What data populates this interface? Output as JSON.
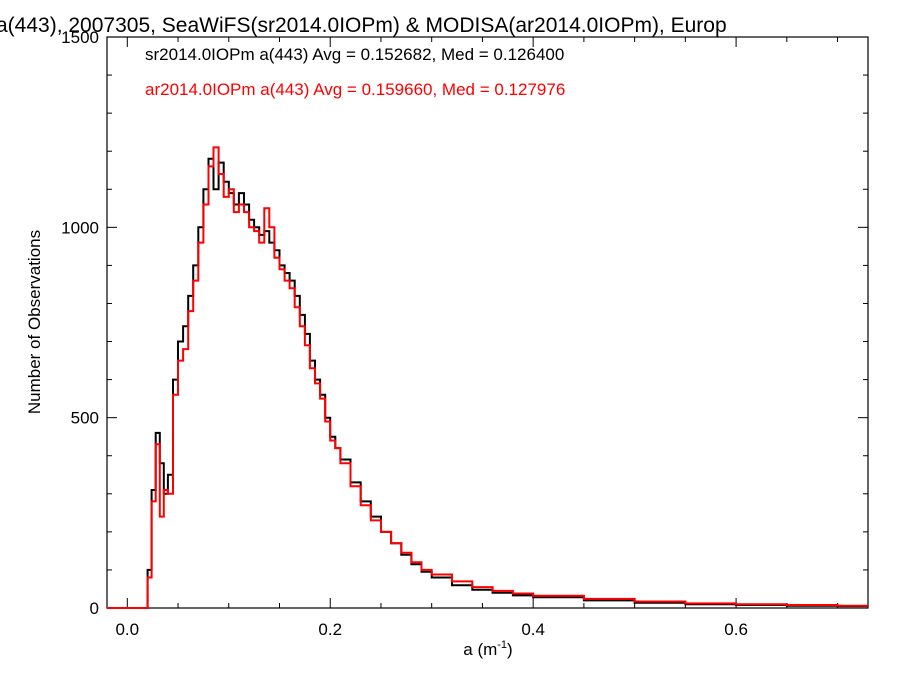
{
  "chart_data": {
    "type": "line",
    "title": "a(443), 2007305, SeaWiFS(sr2014.0IOPm) & MODISA(ar2014.0IOPm), Europ",
    "xlabel_base": "a (m",
    "xlabel_sup": "-1",
    "xlabel_close": ")",
    "ylabel": "Number of Observations",
    "xlim": [
      -0.02,
      0.73
    ],
    "ylim": [
      0,
      1500
    ],
    "xticks": [
      0.0,
      0.2,
      0.4,
      0.6
    ],
    "xtick_labels": [
      "0.0",
      "0.2",
      "0.4",
      "0.6"
    ],
    "yticks": [
      0,
      500,
      1000,
      1500
    ],
    "ytick_labels": [
      "0",
      "500",
      "1000",
      "1500"
    ],
    "legend_placement": "top-left",
    "grid": false,
    "series": [
      {
        "legend": "sr2014.0IOPm a(443) Avg = 0.152682, Med = 0.126400",
        "color": "#000000",
        "points": [
          [
            -0.02,
            0
          ],
          [
            0.016,
            0
          ],
          [
            0.02,
            100
          ],
          [
            0.024,
            310
          ],
          [
            0.028,
            460
          ],
          [
            0.032,
            380
          ],
          [
            0.036,
            300
          ],
          [
            0.04,
            350
          ],
          [
            0.045,
            600
          ],
          [
            0.05,
            700
          ],
          [
            0.055,
            740
          ],
          [
            0.06,
            820
          ],
          [
            0.065,
            900
          ],
          [
            0.07,
            1000
          ],
          [
            0.075,
            1100
          ],
          [
            0.08,
            1180
          ],
          [
            0.085,
            1100
          ],
          [
            0.09,
            1170
          ],
          [
            0.095,
            1120
          ],
          [
            0.1,
            1090
          ],
          [
            0.105,
            1060
          ],
          [
            0.11,
            1090
          ],
          [
            0.115,
            1060
          ],
          [
            0.12,
            1020
          ],
          [
            0.125,
            1000
          ],
          [
            0.13,
            980
          ],
          [
            0.135,
            990
          ],
          [
            0.14,
            960
          ],
          [
            0.145,
            940
          ],
          [
            0.15,
            900
          ],
          [
            0.155,
            880
          ],
          [
            0.16,
            860
          ],
          [
            0.165,
            820
          ],
          [
            0.17,
            770
          ],
          [
            0.175,
            720
          ],
          [
            0.18,
            650
          ],
          [
            0.185,
            600
          ],
          [
            0.19,
            560
          ],
          [
            0.195,
            500
          ],
          [
            0.2,
            450
          ],
          [
            0.205,
            420
          ],
          [
            0.21,
            390
          ],
          [
            0.22,
            330
          ],
          [
            0.23,
            280
          ],
          [
            0.24,
            240
          ],
          [
            0.25,
            200
          ],
          [
            0.26,
            170
          ],
          [
            0.27,
            140
          ],
          [
            0.28,
            115
          ],
          [
            0.29,
            95
          ],
          [
            0.3,
            80
          ],
          [
            0.32,
            60
          ],
          [
            0.34,
            48
          ],
          [
            0.36,
            40
          ],
          [
            0.38,
            33
          ],
          [
            0.4,
            28
          ],
          [
            0.45,
            20
          ],
          [
            0.5,
            14
          ],
          [
            0.55,
            10
          ],
          [
            0.6,
            8
          ],
          [
            0.65,
            6
          ],
          [
            0.7,
            5
          ],
          [
            0.73,
            5
          ]
        ]
      },
      {
        "legend": "ar2014.0IOPm a(443) Avg = 0.159660, Med = 0.127976",
        "color": "#ff0000",
        "points": [
          [
            -0.02,
            0
          ],
          [
            0.016,
            0
          ],
          [
            0.02,
            80
          ],
          [
            0.024,
            280
          ],
          [
            0.028,
            430
          ],
          [
            0.032,
            240
          ],
          [
            0.036,
            310
          ],
          [
            0.04,
            300
          ],
          [
            0.045,
            560
          ],
          [
            0.05,
            650
          ],
          [
            0.055,
            680
          ],
          [
            0.06,
            780
          ],
          [
            0.065,
            860
          ],
          [
            0.07,
            960
          ],
          [
            0.075,
            1060
          ],
          [
            0.08,
            1160
          ],
          [
            0.085,
            1210
          ],
          [
            0.09,
            1140
          ],
          [
            0.095,
            1080
          ],
          [
            0.1,
            1100
          ],
          [
            0.105,
            1040
          ],
          [
            0.11,
            1060
          ],
          [
            0.115,
            1040
          ],
          [
            0.12,
            1000
          ],
          [
            0.125,
            990
          ],
          [
            0.13,
            960
          ],
          [
            0.135,
            1050
          ],
          [
            0.14,
            1000
          ],
          [
            0.145,
            920
          ],
          [
            0.15,
            890
          ],
          [
            0.155,
            860
          ],
          [
            0.16,
            840
          ],
          [
            0.165,
            790
          ],
          [
            0.17,
            740
          ],
          [
            0.175,
            690
          ],
          [
            0.18,
            630
          ],
          [
            0.185,
            590
          ],
          [
            0.19,
            550
          ],
          [
            0.195,
            490
          ],
          [
            0.2,
            440
          ],
          [
            0.205,
            420
          ],
          [
            0.21,
            380
          ],
          [
            0.22,
            320
          ],
          [
            0.23,
            270
          ],
          [
            0.24,
            230
          ],
          [
            0.25,
            200
          ],
          [
            0.26,
            170
          ],
          [
            0.27,
            145
          ],
          [
            0.28,
            120
          ],
          [
            0.29,
            100
          ],
          [
            0.3,
            88
          ],
          [
            0.32,
            70
          ],
          [
            0.34,
            55
          ],
          [
            0.36,
            45
          ],
          [
            0.38,
            38
          ],
          [
            0.4,
            32
          ],
          [
            0.45,
            24
          ],
          [
            0.5,
            17
          ],
          [
            0.55,
            12
          ],
          [
            0.6,
            10
          ],
          [
            0.65,
            8
          ],
          [
            0.7,
            6
          ],
          [
            0.73,
            6
          ]
        ]
      }
    ]
  }
}
